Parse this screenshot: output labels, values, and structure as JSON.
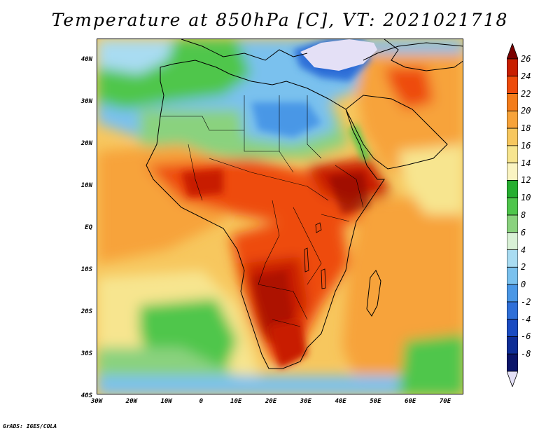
{
  "title": "Temperature at 850hPa [C], VT: 2021021718",
  "credit": "GrADS: IGES/COLA",
  "map": {
    "lat_labels": [
      "40N",
      "30N",
      "20N",
      "10N",
      "EQ",
      "10S",
      "20S",
      "30S",
      "40S"
    ],
    "lon_labels": [
      "30W",
      "20W",
      "10W",
      "0",
      "10E",
      "20E",
      "30E",
      "40E",
      "50E",
      "60E",
      "70E"
    ]
  },
  "colorbar": {
    "levels": [
      "26",
      "24",
      "22",
      "20",
      "18",
      "16",
      "14",
      "12",
      "10",
      "8",
      "6",
      "4",
      "2",
      "0",
      "-2",
      "-4",
      "-6",
      "-8"
    ],
    "colors": [
      "#7a0000",
      "#c81e00",
      "#ee4b0b",
      "#f47c1a",
      "#f7a33a",
      "#f7c75e",
      "#f7e58f",
      "#faf4c2",
      "#26ae30",
      "#4fc64c",
      "#8ad27e",
      "#d9f1d6",
      "#a9dcf2",
      "#7ac1ee",
      "#4a97e6",
      "#2f6fd8",
      "#1a4bc2",
      "#0e2d97",
      "#0b156a",
      "#e4e0f6"
    ]
  },
  "palette": {
    "frame": "#000000",
    "border": "#000000"
  }
}
